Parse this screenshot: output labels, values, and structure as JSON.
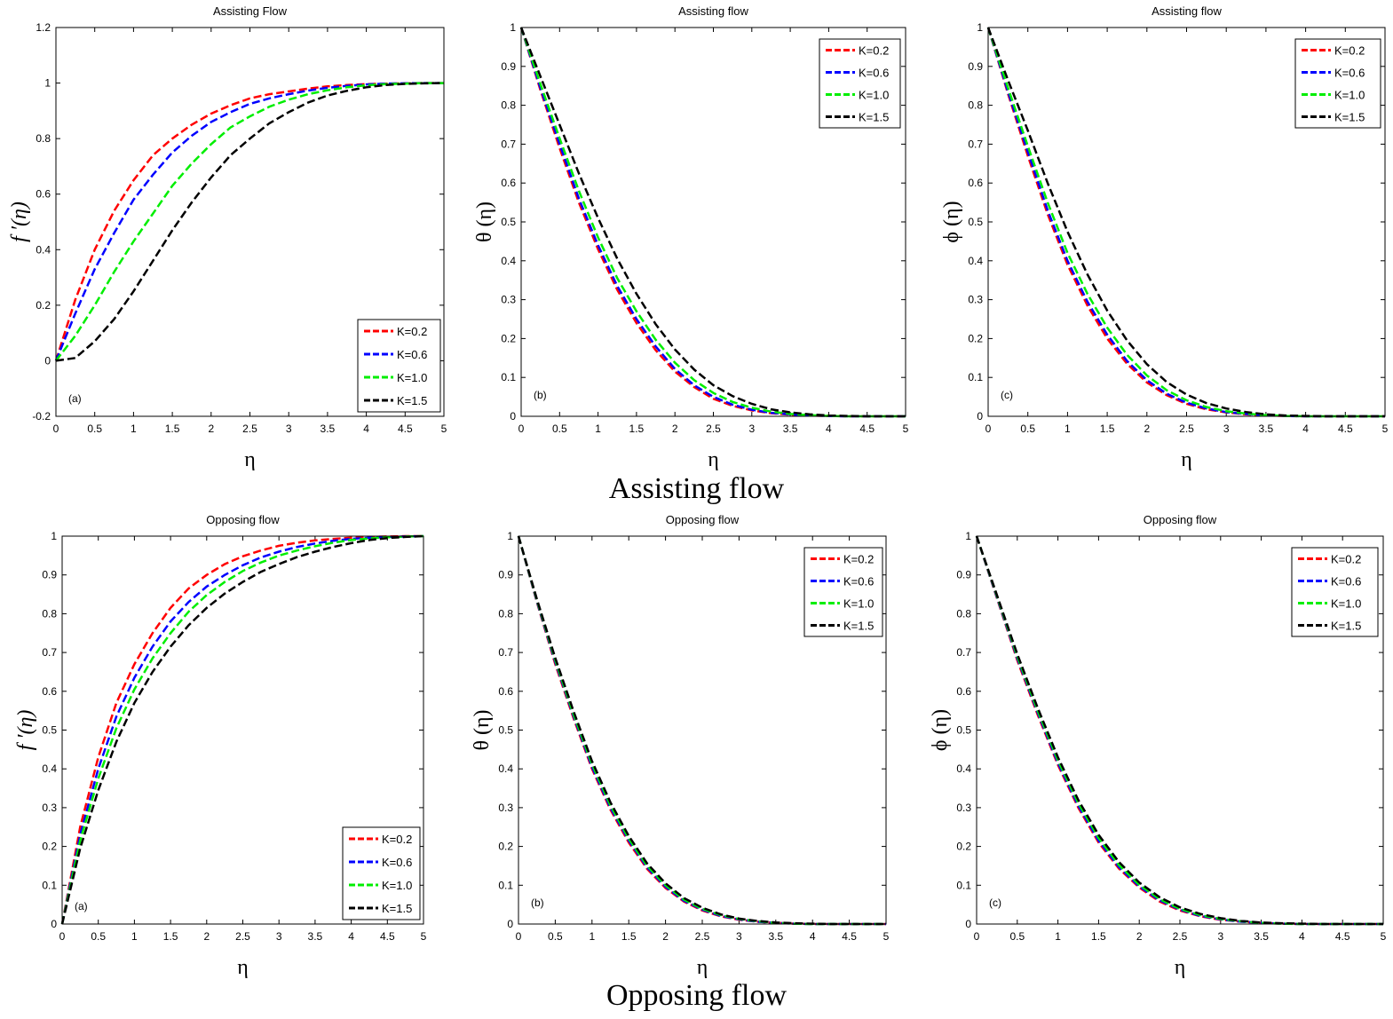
{
  "captions": {
    "assisting": "Assisting flow",
    "opposing": "Opposing flow"
  },
  "colors": {
    "K=0.2": "#ff0000",
    "K=0.6": "#0000ff",
    "K=1.0": "#00ee00",
    "K=1.5": "#000000"
  },
  "chart_data": [
    {
      "type": "line",
      "title": "Assisting Flow",
      "xlabel": "η",
      "ylabel": "f ′(η)",
      "panel_label": "(a)",
      "xlim": [
        0,
        5
      ],
      "ylim": [
        -0.2,
        1.2
      ],
      "xticks": [
        "0",
        "0.5",
        "1",
        "1.5",
        "2",
        "2.5",
        "3",
        "3.5",
        "4",
        "4.5",
        "5"
      ],
      "yticks": [
        "-0.2",
        "0",
        "0.2",
        "0.4",
        "0.6",
        "0.8",
        "1",
        "1.2"
      ],
      "legend_position": "bottom-right",
      "x": [
        0,
        0.25,
        0.5,
        0.75,
        1,
        1.25,
        1.5,
        1.75,
        2,
        2.25,
        2.5,
        2.75,
        3,
        3.25,
        3.5,
        3.75,
        4,
        4.25,
        4.5,
        4.75,
        5
      ],
      "series": [
        {
          "name": "K=0.2",
          "values": [
            0,
            0.22,
            0.4,
            0.54,
            0.65,
            0.74,
            0.8,
            0.85,
            0.89,
            0.92,
            0.945,
            0.96,
            0.97,
            0.98,
            0.988,
            0.993,
            0.996,
            0.998,
            0.999,
            1.0,
            1.0
          ]
        },
        {
          "name": "K=0.6",
          "values": [
            0,
            0.17,
            0.33,
            0.46,
            0.58,
            0.67,
            0.75,
            0.81,
            0.86,
            0.895,
            0.925,
            0.945,
            0.96,
            0.973,
            0.983,
            0.99,
            0.995,
            0.998,
            0.999,
            1.0,
            1.0
          ]
        },
        {
          "name": "K=1.0",
          "values": [
            0,
            0.09,
            0.2,
            0.32,
            0.43,
            0.53,
            0.63,
            0.71,
            0.78,
            0.84,
            0.88,
            0.915,
            0.94,
            0.96,
            0.974,
            0.985,
            0.992,
            0.996,
            0.998,
            1.0,
            1.0
          ]
        },
        {
          "name": "K=1.5",
          "values": [
            0,
            0.01,
            0.07,
            0.15,
            0.25,
            0.36,
            0.47,
            0.57,
            0.66,
            0.74,
            0.8,
            0.855,
            0.895,
            0.93,
            0.955,
            0.972,
            0.985,
            0.993,
            0.997,
            0.999,
            1.0
          ]
        }
      ]
    },
    {
      "type": "line",
      "title": "Assisting flow",
      "xlabel": "η",
      "ylabel": "θ (η)",
      "panel_label": "(b)",
      "xlim": [
        0,
        5
      ],
      "ylim": [
        0,
        1
      ],
      "xticks": [
        "0",
        "0.5",
        "1",
        "1.5",
        "2",
        "2.5",
        "3",
        "3.5",
        "4",
        "4.5",
        "5"
      ],
      "yticks": [
        "0",
        "0.1",
        "0.2",
        "0.3",
        "0.4",
        "0.5",
        "0.6",
        "0.7",
        "0.8",
        "0.9",
        "1"
      ],
      "legend_position": "top-right",
      "x": [
        0,
        0.25,
        0.5,
        0.75,
        1,
        1.25,
        1.5,
        1.75,
        2,
        2.25,
        2.5,
        2.75,
        3,
        3.25,
        3.5,
        3.75,
        4,
        4.25,
        4.5,
        4.75,
        5
      ],
      "series": [
        {
          "name": "K=0.2",
          "values": [
            1,
            0.84,
            0.69,
            0.55,
            0.43,
            0.325,
            0.24,
            0.17,
            0.115,
            0.075,
            0.045,
            0.027,
            0.015,
            0.008,
            0.004,
            0.002,
            0.001,
            0,
            0,
            0,
            0
          ]
        },
        {
          "name": "K=0.6",
          "values": [
            1,
            0.845,
            0.7,
            0.56,
            0.44,
            0.335,
            0.25,
            0.18,
            0.122,
            0.08,
            0.05,
            0.03,
            0.017,
            0.009,
            0.005,
            0.002,
            0.001,
            0,
            0,
            0,
            0
          ]
        },
        {
          "name": "K=1.0",
          "values": [
            1,
            0.855,
            0.715,
            0.58,
            0.46,
            0.355,
            0.27,
            0.197,
            0.138,
            0.093,
            0.06,
            0.037,
            0.022,
            0.012,
            0.006,
            0.003,
            0.001,
            0,
            0,
            0,
            0
          ]
        },
        {
          "name": "K=1.5",
          "values": [
            1,
            0.875,
            0.75,
            0.625,
            0.51,
            0.405,
            0.315,
            0.237,
            0.172,
            0.12,
            0.08,
            0.052,
            0.032,
            0.018,
            0.01,
            0.005,
            0.002,
            0.001,
            0,
            0,
            0
          ]
        }
      ]
    },
    {
      "type": "line",
      "title": "Assisting flow",
      "xlabel": "η",
      "ylabel": "ϕ (η)",
      "panel_label": "(c)",
      "xlim": [
        0,
        5
      ],
      "ylim": [
        0,
        1
      ],
      "xticks": [
        "0",
        "0.5",
        "1",
        "1.5",
        "2",
        "2.5",
        "3",
        "3.5",
        "4",
        "4.5",
        "5"
      ],
      "yticks": [
        "0",
        "0.1",
        "0.2",
        "0.3",
        "0.4",
        "0.5",
        "0.6",
        "0.7",
        "0.8",
        "0.9",
        "1"
      ],
      "legend_position": "top-right",
      "x": [
        0,
        0.25,
        0.5,
        0.75,
        1,
        1.25,
        1.5,
        1.75,
        2,
        2.25,
        2.5,
        2.75,
        3,
        3.25,
        3.5,
        3.75,
        4,
        4.25,
        4.5,
        4.75,
        5
      ],
      "series": [
        {
          "name": "K=0.2",
          "values": [
            1,
            0.83,
            0.67,
            0.52,
            0.39,
            0.285,
            0.2,
            0.135,
            0.087,
            0.054,
            0.032,
            0.018,
            0.01,
            0.005,
            0.002,
            0.001,
            0,
            0,
            0,
            0,
            0
          ]
        },
        {
          "name": "K=0.6",
          "values": [
            1,
            0.835,
            0.68,
            0.53,
            0.4,
            0.295,
            0.21,
            0.142,
            0.093,
            0.058,
            0.035,
            0.02,
            0.011,
            0.006,
            0.003,
            0.001,
            0,
            0,
            0,
            0,
            0
          ]
        },
        {
          "name": "K=1.0",
          "values": [
            1,
            0.845,
            0.695,
            0.55,
            0.42,
            0.315,
            0.228,
            0.158,
            0.105,
            0.067,
            0.041,
            0.024,
            0.013,
            0.007,
            0.003,
            0.001,
            0,
            0,
            0,
            0,
            0
          ]
        },
        {
          "name": "K=1.5",
          "values": [
            1,
            0.865,
            0.735,
            0.6,
            0.475,
            0.365,
            0.272,
            0.195,
            0.134,
            0.088,
            0.056,
            0.034,
            0.02,
            0.011,
            0.005,
            0.002,
            0.001,
            0,
            0,
            0,
            0
          ]
        }
      ]
    },
    {
      "type": "line",
      "title": "Opposing flow",
      "xlabel": "η",
      "ylabel": "f ′(η)",
      "panel_label": "(a)",
      "xlim": [
        0,
        5
      ],
      "ylim": [
        0,
        1
      ],
      "xticks": [
        "0",
        "0.5",
        "1",
        "1.5",
        "2",
        "2.5",
        "3",
        "3.5",
        "4",
        "4.5",
        "5"
      ],
      "yticks": [
        "0",
        "0.1",
        "0.2",
        "0.3",
        "0.4",
        "0.5",
        "0.6",
        "0.7",
        "0.8",
        "0.9",
        "1"
      ],
      "legend_position": "bottom-right",
      "x": [
        0,
        0.25,
        0.5,
        0.75,
        1,
        1.25,
        1.5,
        1.75,
        2,
        2.25,
        2.5,
        2.75,
        3,
        3.25,
        3.5,
        3.75,
        4,
        4.25,
        4.5,
        4.75,
        5
      ],
      "series": [
        {
          "name": "K=0.2",
          "values": [
            0,
            0.25,
            0.43,
            0.57,
            0.67,
            0.75,
            0.815,
            0.865,
            0.9,
            0.928,
            0.948,
            0.963,
            0.975,
            0.983,
            0.989,
            0.993,
            0.996,
            0.998,
            0.999,
            1.0,
            1.0
          ]
        },
        {
          "name": "K=0.6",
          "values": [
            0,
            0.23,
            0.4,
            0.535,
            0.635,
            0.715,
            0.78,
            0.83,
            0.87,
            0.9,
            0.925,
            0.945,
            0.96,
            0.972,
            0.981,
            0.988,
            0.993,
            0.996,
            0.998,
            0.999,
            1.0
          ]
        },
        {
          "name": "K=1.0",
          "values": [
            0,
            0.215,
            0.375,
            0.505,
            0.605,
            0.685,
            0.75,
            0.805,
            0.848,
            0.882,
            0.91,
            0.932,
            0.95,
            0.963,
            0.974,
            0.983,
            0.99,
            0.994,
            0.997,
            0.999,
            1.0
          ]
        },
        {
          "name": "K=1.5",
          "values": [
            0,
            0.195,
            0.345,
            0.47,
            0.57,
            0.65,
            0.715,
            0.77,
            0.815,
            0.852,
            0.882,
            0.908,
            0.928,
            0.946,
            0.96,
            0.972,
            0.982,
            0.99,
            0.995,
            0.998,
            1.0
          ]
        }
      ]
    },
    {
      "type": "line",
      "title": "Opposing flow",
      "xlabel": "η",
      "ylabel": "θ (η)",
      "panel_label": "(b)",
      "xlim": [
        0,
        5
      ],
      "ylim": [
        0,
        1
      ],
      "xticks": [
        "0",
        "0.5",
        "1",
        "1.5",
        "2",
        "2.5",
        "3",
        "3.5",
        "4",
        "4.5",
        "5"
      ],
      "yticks": [
        "0",
        "0.1",
        "0.2",
        "0.3",
        "0.4",
        "0.5",
        "0.6",
        "0.7",
        "0.8",
        "0.9",
        "1"
      ],
      "legend_position": "top-right",
      "x": [
        0,
        0.25,
        0.5,
        0.75,
        1,
        1.25,
        1.5,
        1.75,
        2,
        2.25,
        2.5,
        2.75,
        3,
        3.25,
        3.5,
        3.75,
        4,
        4.25,
        4.5,
        4.75,
        5
      ],
      "series": [
        {
          "name": "K=0.2",
          "values": [
            1,
            0.83,
            0.67,
            0.53,
            0.4,
            0.295,
            0.21,
            0.142,
            0.093,
            0.058,
            0.035,
            0.02,
            0.011,
            0.006,
            0.003,
            0.001,
            0,
            0,
            0,
            0,
            0
          ]
        },
        {
          "name": "K=0.6",
          "values": [
            1,
            0.832,
            0.675,
            0.535,
            0.405,
            0.3,
            0.215,
            0.146,
            0.096,
            0.06,
            0.037,
            0.021,
            0.012,
            0.006,
            0.003,
            0.001,
            0,
            0,
            0,
            0,
            0
          ]
        },
        {
          "name": "K=1.0",
          "values": [
            1,
            0.835,
            0.68,
            0.54,
            0.412,
            0.306,
            0.22,
            0.15,
            0.1,
            0.063,
            0.039,
            0.023,
            0.013,
            0.007,
            0.003,
            0.001,
            0,
            0,
            0,
            0,
            0
          ]
        },
        {
          "name": "K=1.5",
          "values": [
            1,
            0.838,
            0.686,
            0.548,
            0.42,
            0.314,
            0.227,
            0.156,
            0.105,
            0.067,
            0.042,
            0.025,
            0.014,
            0.008,
            0.004,
            0.002,
            0.001,
            0,
            0,
            0,
            0
          ]
        }
      ]
    },
    {
      "type": "line",
      "title": "Opposing flow",
      "xlabel": "η",
      "ylabel": "ϕ (η)",
      "panel_label": "(c)",
      "xlim": [
        0,
        5
      ],
      "ylim": [
        0,
        1
      ],
      "xticks": [
        "0",
        "0.5",
        "1",
        "1.5",
        "2",
        "2.5",
        "3",
        "3.5",
        "4",
        "4.5",
        "5"
      ],
      "yticks": [
        "0",
        "0.1",
        "0.2",
        "0.3",
        "0.4",
        "0.5",
        "0.6",
        "0.7",
        "0.8",
        "0.9",
        "1"
      ],
      "legend_position": "top-right",
      "x": [
        0,
        0.25,
        0.5,
        0.75,
        1,
        1.25,
        1.5,
        1.75,
        2,
        2.25,
        2.5,
        2.75,
        3,
        3.25,
        3.5,
        3.75,
        4,
        4.25,
        4.5,
        4.75,
        5
      ],
      "series": [
        {
          "name": "K=0.2",
          "values": [
            1,
            0.84,
            0.68,
            0.54,
            0.41,
            0.3,
            0.21,
            0.143,
            0.094,
            0.058,
            0.035,
            0.02,
            0.011,
            0.006,
            0.003,
            0.001,
            0,
            0,
            0,
            0,
            0
          ]
        },
        {
          "name": "K=0.6",
          "values": [
            1,
            0.842,
            0.685,
            0.545,
            0.415,
            0.305,
            0.215,
            0.147,
            0.097,
            0.061,
            0.037,
            0.021,
            0.012,
            0.006,
            0.003,
            0.001,
            0,
            0,
            0,
            0,
            0
          ]
        },
        {
          "name": "K=1.0",
          "values": [
            1,
            0.845,
            0.69,
            0.55,
            0.422,
            0.312,
            0.222,
            0.152,
            0.101,
            0.064,
            0.039,
            0.023,
            0.013,
            0.007,
            0.003,
            0.001,
            0,
            0,
            0,
            0,
            0
          ]
        },
        {
          "name": "K=1.5",
          "values": [
            1,
            0.848,
            0.696,
            0.558,
            0.43,
            0.32,
            0.23,
            0.16,
            0.107,
            0.069,
            0.043,
            0.026,
            0.015,
            0.008,
            0.004,
            0.002,
            0.001,
            0,
            0,
            0,
            0
          ]
        }
      ]
    }
  ]
}
